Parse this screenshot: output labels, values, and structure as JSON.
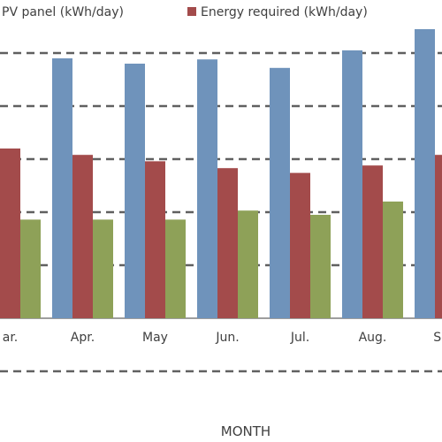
{
  "chart_data": {
    "type": "bar",
    "xlabel": "MONTH",
    "ylabel": "",
    "ylim": [
      0,
      6
    ],
    "grid": "dashed horizontal",
    "legend_position": "top",
    "categories": [
      "ar.",
      "Apr.",
      "May",
      "Jun.",
      "Jul.",
      "Aug.",
      "Sep"
    ],
    "series": [
      {
        "name": "PV panel (kWh/day)",
        "color": "#6f93bb",
        "values": [
          null,
          4.9,
          4.8,
          4.88,
          4.72,
          5.05,
          5.45
        ]
      },
      {
        "name": "Energy required (kWh/day)",
        "color": "#a34b4b",
        "values": [
          3.2,
          3.08,
          2.96,
          2.83,
          2.74,
          2.88,
          3.08
        ]
      },
      {
        "name": "",
        "color": "#8ea158",
        "values": [
          1.86,
          1.86,
          1.86,
          2.03,
          1.95,
          2.2,
          null
        ]
      }
    ]
  }
}
